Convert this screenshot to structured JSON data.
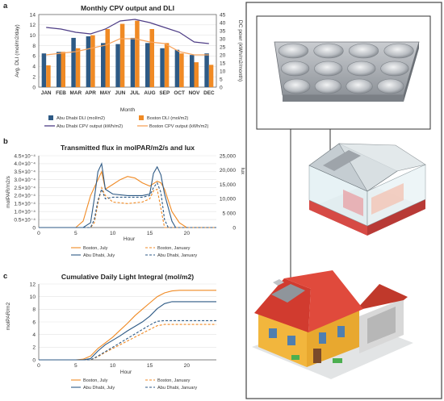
{
  "panel_labels": [
    "a",
    "b",
    "c"
  ],
  "colors": {
    "abu_dhabi": "#2e5a85",
    "boston": "#f08a24",
    "cpv_abu": "#4e3d86",
    "cpv_bos": "#f7a35c",
    "grid": "#e3e3e3",
    "frame": "#555555"
  },
  "chart_data": [
    {
      "type": "bar",
      "title": "Monthly CPV output and DLI",
      "xlabel": "Month",
      "ylabel": "Avg. DLI (mol/m2/day)",
      "y2label": "DC powr (kWh/m2/month)",
      "categories": [
        "JAN",
        "FEB",
        "MAR",
        "APR",
        "MAY",
        "JUN",
        "JUL",
        "AUG",
        "SEP",
        "OCT",
        "NOV",
        "DEC"
      ],
      "ylim": [
        0,
        14
      ],
      "yticks": [
        0,
        2,
        4,
        6,
        8,
        10,
        12,
        14
      ],
      "y2lim": [
        0,
        45
      ],
      "y2ticks": [
        0,
        5,
        10,
        15,
        20,
        25,
        30,
        35,
        40,
        45
      ],
      "series": [
        {
          "name": "Abu Dhabi DLI (mol/m2)",
          "type": "bar",
          "values": [
            6.5,
            6.8,
            9.5,
            9.8,
            8.5,
            8.3,
            9.5,
            8.5,
            7.5,
            7.2,
            6.2,
            6.5
          ]
        },
        {
          "name": "Boston DLI (mol/m2)",
          "type": "bar",
          "values": [
            4.2,
            6.8,
            7.5,
            10.0,
            11.2,
            12.2,
            12.8,
            11.2,
            8.5,
            6.5,
            4.8,
            4.3
          ]
        },
        {
          "name": "Abu Dhabi CPV output (kWh/m2)",
          "type": "line",
          "axis": "y2",
          "values": [
            37,
            36,
            34,
            33,
            36,
            41,
            42,
            40,
            37,
            34,
            28,
            27
          ]
        },
        {
          "name": "Boston CPV output (kWh/m2)",
          "type": "line",
          "axis": "y2",
          "values": [
            20,
            21,
            22,
            24,
            26,
            30,
            30,
            28,
            27,
            22,
            20,
            20
          ]
        }
      ]
    },
    {
      "type": "line",
      "title": "Transmitted flux in molPAR/m2/s and lux",
      "xlabel": "Hour",
      "ylabel": "molPAR/m2/s",
      "y2label": "lux",
      "xlim": [
        0,
        24
      ],
      "xticks": [
        0,
        5,
        10,
        15,
        20
      ],
      "ylim": [
        0,
        0.00045
      ],
      "yticks": [
        0,
        5e-05,
        0.0001,
        0.00015,
        0.0002,
        0.00025,
        0.0003,
        0.00035,
        0.0004,
        0.00045
      ],
      "ytick_labels": [
        "0",
        "0.5×10⁻⁴",
        "1.0×10⁻⁴",
        "1.5×10⁻⁴",
        "2.0×10⁻⁴",
        "2.5×10⁻⁴",
        "3.0×10⁻⁴",
        "3.5×10⁻⁴",
        "4.0×10⁻⁴",
        "4.5×10⁻⁴"
      ],
      "y2lim": [
        0,
        25000
      ],
      "y2ticks": [
        0,
        5000,
        10000,
        15000,
        20000,
        25000
      ],
      "y2tick_labels": [
        "0",
        "5 000",
        "10,000",
        "15,000",
        "20,000",
        "25,000"
      ],
      "series": [
        {
          "name": "Boston, July",
          "dash": false,
          "color": "boston",
          "x": [
            0,
            5,
            6,
            7,
            8,
            8.5,
            9,
            10,
            11,
            12,
            13,
            14,
            15,
            16,
            16.5,
            17,
            18,
            19,
            20,
            24
          ],
          "y": [
            0,
            0,
            4e-05,
            0.0002,
            0.0003,
            0.00035,
            0.00024,
            0.00027,
            0.0003,
            0.00032,
            0.00031,
            0.00028,
            0.00026,
            0.00029,
            0.00028,
            0.00024,
            0.0001,
            3e-05,
            0,
            0
          ]
        },
        {
          "name": "Abu Dhabi, July",
          "dash": false,
          "color": "abu_dhabi",
          "x": [
            0,
            6,
            7,
            7.5,
            8,
            8.5,
            9,
            10,
            12,
            14,
            15,
            15.5,
            16,
            16.5,
            17,
            18,
            18.5,
            24
          ],
          "y": [
            0,
            0,
            3e-05,
            0.00018,
            0.00035,
            0.0004,
            0.00024,
            0.00021,
            0.0002,
            0.0002,
            0.00021,
            0.00034,
            0.00038,
            0.00033,
            0.00021,
            4e-05,
            0,
            0
          ]
        },
        {
          "name": "Boston, January",
          "dash": true,
          "color": "boston",
          "x": [
            0,
            7,
            7.5,
            8,
            8.5,
            9,
            10,
            12,
            14,
            15,
            15.5,
            16,
            16.5,
            17,
            24
          ],
          "y": [
            0,
            0,
            3e-05,
            0.00015,
            0.00025,
            0.0002,
            0.00016,
            0.00015,
            0.00016,
            0.00018,
            0.00023,
            0.00024,
            0.00012,
            0,
            0
          ]
        },
        {
          "name": "Abu Dhabi, January",
          "dash": true,
          "color": "abu_dhabi",
          "x": [
            0,
            7,
            7.5,
            8,
            8.5,
            9,
            10,
            12,
            14,
            15,
            15.5,
            16,
            16.5,
            17,
            17.5,
            24
          ],
          "y": [
            0,
            0,
            5e-05,
            0.00017,
            0.00024,
            0.00018,
            0.00019,
            0.00019,
            0.00019,
            0.0002,
            0.00025,
            0.00028,
            0.00022,
            5e-05,
            0,
            0
          ]
        }
      ]
    },
    {
      "type": "line",
      "title": "Cumulative Daily Light Integral (mol/m2)",
      "xlabel": "Hour",
      "ylabel": "molPAR/m2",
      "xlim": [
        0,
        24
      ],
      "xticks": [
        0,
        5,
        10,
        15,
        20
      ],
      "ylim": [
        0,
        12
      ],
      "yticks": [
        0,
        2,
        4,
        6,
        8,
        10,
        12
      ],
      "series": [
        {
          "name": "Boston, July",
          "dash": false,
          "color": "boston",
          "x": [
            0,
            5,
            6,
            7,
            8,
            9,
            10,
            11,
            12,
            13,
            14,
            15,
            16,
            17,
            18,
            19,
            20,
            24
          ],
          "y": [
            0,
            0,
            0.1,
            0.6,
            1.8,
            2.7,
            3.6,
            4.7,
            5.8,
            7.0,
            8.0,
            9.0,
            10.0,
            10.6,
            10.9,
            11.0,
            11.0,
            11.0
          ]
        },
        {
          "name": "Abu Dhabi, July",
          "dash": false,
          "color": "abu_dhabi",
          "x": [
            0,
            6,
            7,
            8,
            9,
            10,
            11,
            12,
            13,
            14,
            15,
            16,
            17,
            18,
            19,
            24
          ],
          "y": [
            0,
            0,
            0.2,
            1.4,
            2.4,
            3.1,
            3.8,
            4.6,
            5.3,
            6.0,
            6.9,
            8.1,
            8.9,
            9.2,
            9.2,
            9.2
          ]
        },
        {
          "name": "Boston, January",
          "dash": true,
          "color": "boston",
          "x": [
            0,
            7,
            8,
            9,
            10,
            11,
            12,
            13,
            14,
            15,
            16,
            17,
            24
          ],
          "y": [
            0,
            0,
            0.5,
            1.2,
            1.8,
            2.4,
            3.0,
            3.6,
            4.2,
            4.8,
            5.4,
            5.6,
            5.6
          ]
        },
        {
          "name": "Abu Dhabi, January",
          "dash": true,
          "color": "abu_dhabi",
          "x": [
            0,
            7,
            8,
            9,
            10,
            11,
            12,
            13,
            14,
            15,
            16,
            17,
            24
          ],
          "y": [
            0,
            0,
            0.6,
            1.3,
            2.0,
            2.7,
            3.4,
            4.1,
            4.8,
            5.5,
            6.1,
            6.2,
            6.2
          ]
        }
      ]
    }
  ]
}
